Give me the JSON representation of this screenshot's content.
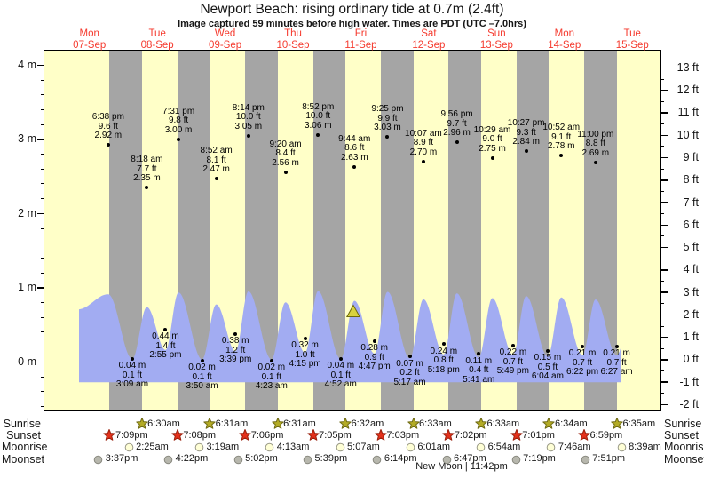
{
  "title": "Newport Beach: rising  ordinary tide at 0.7m (2.4ft)",
  "subtitle": "Image captured 59 minutes before high water. Times are PDT (UTC –7.0hrs)",
  "colors": {
    "day_band": "#ffffc8",
    "night_band": "#a5a5a5",
    "tide_fill": "#a2acf2",
    "day_label_red": "#f53a2e",
    "sunrise_star": "#b3ab25",
    "sunrise_star_stroke": "#6e6a14",
    "sunset_star": "#e4311b",
    "sunset_star_stroke": "#99200d",
    "moonrise_fill": "#ffffd6",
    "moonrise_stroke": "#9a9a88",
    "moonset_fill": "#b7b7ad",
    "moonset_stroke": "#8a8a80",
    "marker_fill": "#d8d23e",
    "marker_stroke": "#6f6a08"
  },
  "chart_data": {
    "type": "area",
    "title": "Newport Beach: rising ordinary tide at 0.7m (2.4ft)",
    "x_days": [
      {
        "dow": "Mon",
        "date": "07-Sep"
      },
      {
        "dow": "Tue",
        "date": "08-Sep"
      },
      {
        "dow": "Wed",
        "date": "09-Sep"
      },
      {
        "dow": "Thu",
        "date": "10-Sep"
      },
      {
        "dow": "Fri",
        "date": "11-Sep"
      },
      {
        "dow": "Sat",
        "date": "12-Sep"
      },
      {
        "dow": "Sun",
        "date": "13-Sep"
      },
      {
        "dow": "Mon",
        "date": "14-Sep"
      },
      {
        "dow": "Tue",
        "date": "15-Sep"
      }
    ],
    "y_left": {
      "unit": "m",
      "min": -0.65,
      "max": 4.2,
      "ticks": [
        {
          "v": 4,
          "label": "4 m"
        },
        {
          "v": 3,
          "label": "3 m"
        },
        {
          "v": 2,
          "label": "2 m"
        },
        {
          "v": 1,
          "label": "1 m"
        },
        {
          "v": 0,
          "label": "0 m"
        }
      ]
    },
    "y_right": {
      "unit": "ft",
      "min": -2,
      "max": 13,
      "ticks": [
        {
          "v": 13,
          "label": "13 ft"
        },
        {
          "v": 12,
          "label": "12 ft"
        },
        {
          "v": 11,
          "label": "11 ft"
        },
        {
          "v": 10,
          "label": "10 ft"
        },
        {
          "v": 9,
          "label": "9 ft"
        },
        {
          "v": 8,
          "label": "8 ft"
        },
        {
          "v": 7,
          "label": "7 ft"
        },
        {
          "v": 6,
          "label": "6 ft"
        },
        {
          "v": 5,
          "label": "5 ft"
        },
        {
          "v": 4,
          "label": "4 ft"
        },
        {
          "v": 3,
          "label": "3 ft"
        },
        {
          "v": 2,
          "label": "2 ft"
        },
        {
          "v": 1,
          "label": "1 ft"
        },
        {
          "v": 0,
          "label": "0 ft"
        },
        {
          "v": -1,
          "label": "-1 ft"
        },
        {
          "v": -2,
          "label": "-2 ft"
        }
      ]
    },
    "tide_events": [
      {
        "day_index": 0,
        "date": "07-Sep",
        "type": "high",
        "time": "6:38 pm",
        "height_ft": "9.6 ft",
        "height_m": "2.92 m"
      },
      {
        "day_index": 1,
        "date": "08-Sep",
        "type": "low",
        "time": "3:09 am",
        "height_ft": "0.1 ft",
        "height_m": "0.04 m"
      },
      {
        "day_index": 1,
        "date": "08-Sep",
        "type": "high",
        "time": "8:18 am",
        "height_ft": "7.7 ft",
        "height_m": "2.35 m"
      },
      {
        "day_index": 1,
        "date": "08-Sep",
        "type": "low",
        "time": "2:55 pm",
        "height_ft": "1.4 ft",
        "height_m": "0.44 m"
      },
      {
        "day_index": 1,
        "date": "08-Sep",
        "type": "high",
        "time": "7:31 pm",
        "height_ft": "9.8 ft",
        "height_m": "3.00 m"
      },
      {
        "day_index": 2,
        "date": "09-Sep",
        "type": "low",
        "time": "3:50 am",
        "height_ft": "0.1 ft",
        "height_m": "0.02 m"
      },
      {
        "day_index": 2,
        "date": "09-Sep",
        "type": "high",
        "time": "8:52 am",
        "height_ft": "8.1 ft",
        "height_m": "2.47 m"
      },
      {
        "day_index": 2,
        "date": "09-Sep",
        "type": "low",
        "time": "3:39 pm",
        "height_ft": "1.2 ft",
        "height_m": "0.38 m"
      },
      {
        "day_index": 2,
        "date": "09-Sep",
        "type": "high",
        "time": "8:14 pm",
        "height_ft": "10.0 ft",
        "height_m": "3.05 m"
      },
      {
        "day_index": 3,
        "date": "10-Sep",
        "type": "low",
        "time": "4:23 am",
        "height_ft": "0.1 ft",
        "height_m": "0.02 m"
      },
      {
        "day_index": 3,
        "date": "10-Sep",
        "type": "high",
        "time": "9:20 am",
        "height_ft": "8.4 ft",
        "height_m": "2.56 m"
      },
      {
        "day_index": 3,
        "date": "10-Sep",
        "type": "low",
        "time": "4:15 pm",
        "height_ft": "1.0 ft",
        "height_m": "0.32 m"
      },
      {
        "day_index": 3,
        "date": "10-Sep",
        "type": "high",
        "time": "8:52 pm",
        "height_ft": "10.0 ft",
        "height_m": "3.06 m"
      },
      {
        "day_index": 4,
        "date": "11-Sep",
        "type": "low",
        "time": "4:52 am",
        "height_ft": "0.1 ft",
        "height_m": "0.04 m"
      },
      {
        "day_index": 4,
        "date": "11-Sep",
        "type": "high",
        "time": "9:44 am",
        "height_ft": "8.6 ft",
        "height_m": "2.63 m"
      },
      {
        "day_index": 4,
        "date": "11-Sep",
        "type": "low",
        "time": "4:47 pm",
        "height_ft": "0.9 ft",
        "height_m": "0.28 m"
      },
      {
        "day_index": 4,
        "date": "11-Sep",
        "type": "high",
        "time": "9:25 pm",
        "height_ft": "9.9 ft",
        "height_m": "3.03 m"
      },
      {
        "day_index": 5,
        "date": "12-Sep",
        "type": "low",
        "time": "5:17 am",
        "height_ft": "0.2 ft",
        "height_m": "0.07 m"
      },
      {
        "day_index": 5,
        "date": "12-Sep",
        "type": "high",
        "time": "10:07 am",
        "height_ft": "8.9 ft",
        "height_m": "2.70 m"
      },
      {
        "day_index": 5,
        "date": "12-Sep",
        "type": "low",
        "time": "5:18 pm",
        "height_ft": "0.8 ft",
        "height_m": "0.24 m"
      },
      {
        "day_index": 5,
        "date": "12-Sep",
        "type": "high",
        "time": "9:56 pm",
        "height_ft": "9.7 ft",
        "height_m": "2.96 m"
      },
      {
        "day_index": 6,
        "date": "13-Sep",
        "type": "low",
        "time": "5:41 am",
        "height_ft": "0.4 ft",
        "height_m": "0.11 m"
      },
      {
        "day_index": 6,
        "date": "13-Sep",
        "type": "high",
        "time": "10:29 am",
        "height_ft": "9.0 ft",
        "height_m": "2.75 m"
      },
      {
        "day_index": 6,
        "date": "13-Sep",
        "type": "low",
        "time": "5:49 pm",
        "height_ft": "0.7 ft",
        "height_m": "0.22 m"
      },
      {
        "day_index": 6,
        "date": "13-Sep",
        "type": "high",
        "time": "10:27 pm",
        "height_ft": "9.3 ft",
        "height_m": "2.84 m"
      },
      {
        "day_index": 7,
        "date": "14-Sep",
        "type": "low",
        "time": "6:04 am",
        "height_ft": "0.5 ft",
        "height_m": "0.15 m"
      },
      {
        "day_index": 7,
        "date": "14-Sep",
        "type": "high",
        "time": "10:52 am",
        "height_ft": "9.1 ft",
        "height_m": "2.78 m"
      },
      {
        "day_index": 7,
        "date": "14-Sep",
        "type": "low",
        "time": "6:22 pm",
        "height_ft": "0.7 ft",
        "height_m": "0.21 m"
      },
      {
        "day_index": 7,
        "date": "14-Sep",
        "type": "high",
        "time": "11:00 pm",
        "height_ft": "8.8 ft",
        "height_m": "2.69 m"
      },
      {
        "day_index": 8,
        "date": "15-Sep",
        "type": "low",
        "time": "6:27 am",
        "height_ft": "0.7 ft",
        "height_m": "0.21 m"
      }
    ]
  },
  "astro": {
    "rows": [
      {
        "label": "Sunrise",
        "icon": "sunrise-star-icon",
        "start_day_index": 1,
        "times": [
          "6:30am",
          "6:31am",
          "6:31am",
          "6:32am",
          "6:33am",
          "6:33am",
          "6:34am",
          "6:35am"
        ]
      },
      {
        "label": "Sunset",
        "icon": "sunset-star-icon",
        "start_day_index": 0,
        "times": [
          "7:09pm",
          "7:08pm",
          "7:06pm",
          "7:05pm",
          "7:03pm",
          "7:02pm",
          "7:01pm",
          "6:59pm"
        ]
      },
      {
        "label": "Moonrise",
        "icon": "moonrise-circle-icon",
        "start_day_index": 1,
        "times": [
          "2:25am",
          "3:19am",
          "4:13am",
          "5:07am",
          "6:01am",
          "6:54am",
          "7:46am",
          "8:39am"
        ]
      },
      {
        "label": "Moonset",
        "icon": "moonset-circle-icon",
        "start_day_index": 0,
        "times": [
          "3:37pm",
          "4:22pm",
          "5:02pm",
          "5:39pm",
          "6:14pm",
          "6:47pm",
          "7:19pm",
          "7:51pm"
        ]
      }
    ],
    "new_moon": "New Moon | 11:42pm"
  }
}
